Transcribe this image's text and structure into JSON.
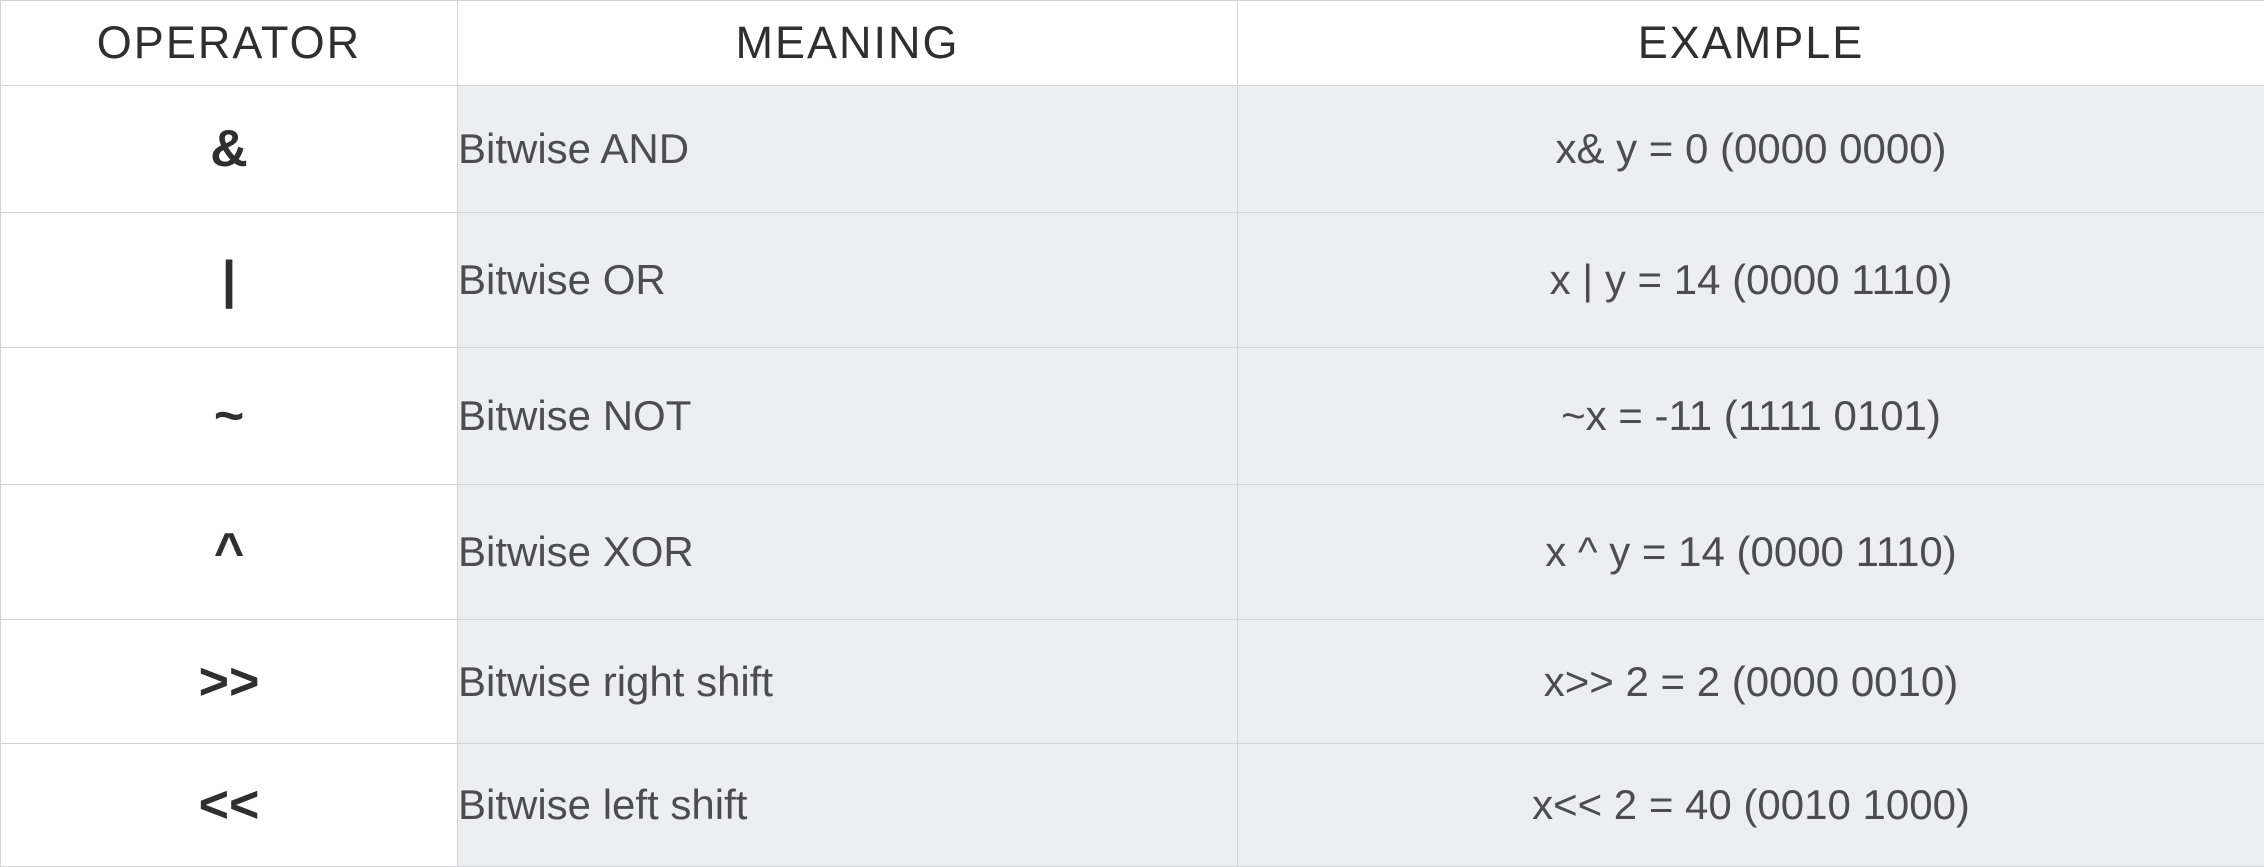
{
  "table": {
    "headers": {
      "operator": "OPERATOR",
      "meaning": "MEANING",
      "example": "EXAMPLE"
    },
    "rows": [
      {
        "operator": "&",
        "meaning": "Bitwise AND",
        "example": "x& y = 0 (0000 0000)"
      },
      {
        "operator": "|",
        "meaning": "Bitwise OR",
        "example": "x | y = 14 (0000 1110)"
      },
      {
        "operator": "~",
        "meaning": "Bitwise NOT",
        "example": "~x = -11 (1111 0101)"
      },
      {
        "operator": "^",
        "meaning": "Bitwise XOR",
        "example": "x ^ y = 14 (0000 1110)"
      },
      {
        "operator": ">>",
        "meaning": "Bitwise right shift",
        "example": "x>> 2 = 2 (0000 0010)"
      },
      {
        "operator": "<<",
        "meaning": "Bitwise left shift",
        "example": "x<< 2 = 40 (0010 1000)"
      }
    ]
  },
  "colors": {
    "header_bg": "#ffffff",
    "body_bg": "#edeef2",
    "operator_bg": "#ffffff",
    "border": "#d4d4d6",
    "text_dark": "#2f2f2f",
    "text_body": "#4d4d4f"
  }
}
